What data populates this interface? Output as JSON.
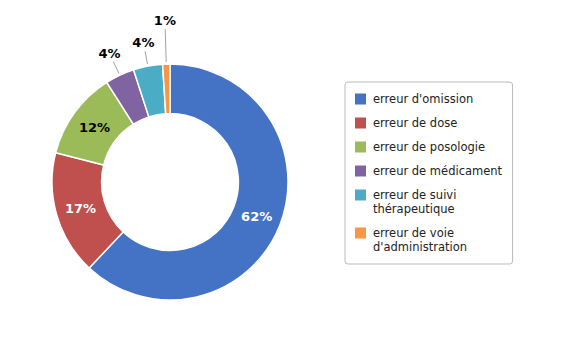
{
  "chart_data": {
    "type": "donut",
    "categories": [
      "erreur d'omission",
      "erreur de dose",
      "erreur de posologie",
      "erreur de médicament",
      "erreur de suivi\nthérapeutique",
      "erreur de voie\nd'administration"
    ],
    "values": [
      62,
      17,
      12,
      4,
      4,
      1
    ],
    "value_labels": [
      "62%",
      "17%",
      "12%",
      "4%",
      "4%",
      "1%"
    ],
    "colors": [
      "#4472C4",
      "#C0504D",
      "#9BBB59",
      "#8064A2",
      "#4BACC6",
      "#F79646"
    ],
    "data_labels": true,
    "legend": "right"
  }
}
